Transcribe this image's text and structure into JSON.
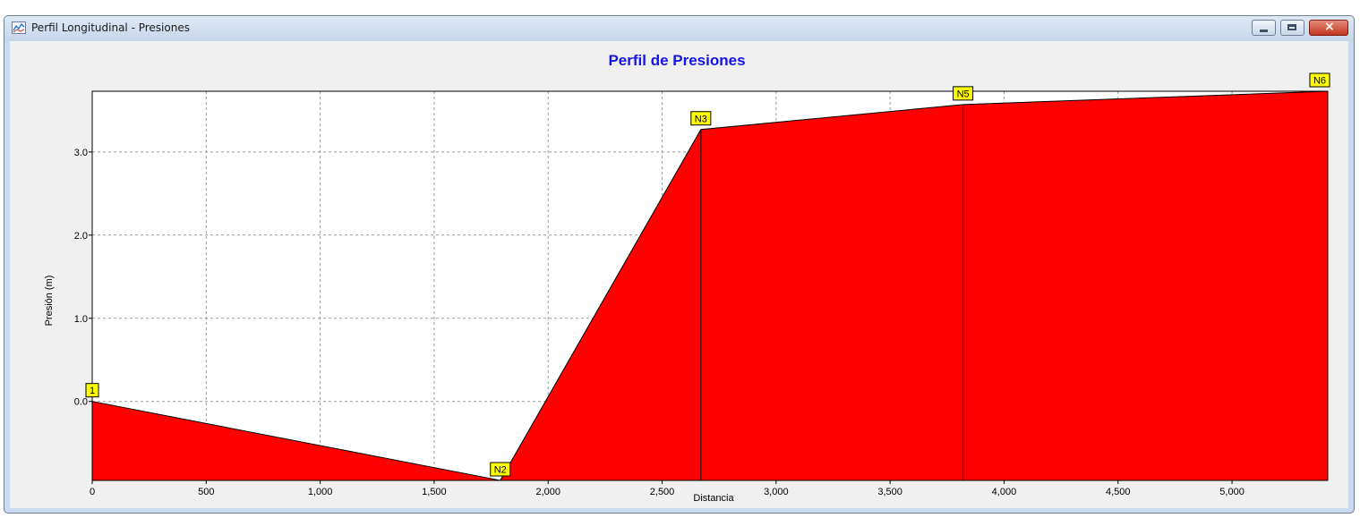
{
  "window": {
    "title": "Perfil Longitudinal - Presiones",
    "app_icon": "chart-icon",
    "controls": {
      "minimize": "minimize-icon",
      "maximize": "maximize-icon",
      "close": "close-icon",
      "close_glyph": "×"
    }
  },
  "colors": {
    "title": "#1515e8",
    "fill": "#ff0000",
    "label_bg": "#ffff00"
  },
  "chart_data": {
    "type": "area",
    "title": "Perfil de Presiones",
    "xlabel": "Distancia",
    "ylabel": "Presión (m)",
    "xlim": [
      0,
      5420
    ],
    "ylim": [
      -0.95,
      3.73
    ],
    "x_ticks": [
      0,
      500,
      1000,
      1500,
      2000,
      2500,
      3000,
      3500,
      4000,
      4500,
      5000
    ],
    "x_tick_labels": [
      "0",
      "500",
      "1,000",
      "1,500",
      "2,000",
      "2,500",
      "3,000",
      "3,500",
      "4,000",
      "4,500",
      "5,000"
    ],
    "y_ticks": [
      0,
      1,
      2,
      3
    ],
    "y_tick_labels": [
      "0.0",
      "1.0",
      "2.0",
      "3.0"
    ],
    "grid": true,
    "points": [
      {
        "x": 0,
        "y": 0.0,
        "label": "1"
      },
      {
        "x": 1790,
        "y": -0.95,
        "label": "N2"
      },
      {
        "x": 2670,
        "y": 3.27,
        "label": "N3"
      },
      {
        "x": 3820,
        "y": 3.57,
        "label": "N5"
      },
      {
        "x": 5420,
        "y": 3.73,
        "label": "N6"
      }
    ]
  }
}
